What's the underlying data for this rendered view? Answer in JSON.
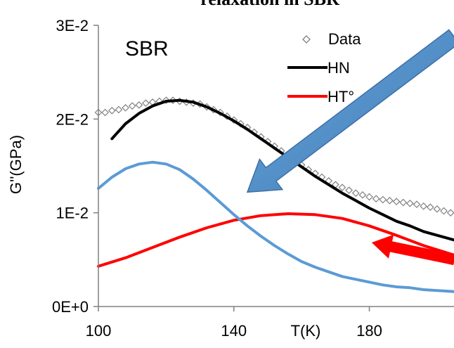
{
  "chart_data": {
    "type": "scatter",
    "title": "relaxation in SBR",
    "annotation": "SBR",
    "xlabel": "T(K)",
    "ylabel": "G''(GPa)",
    "xlim": [
      100,
      205
    ],
    "ylim": [
      0,
      0.03
    ],
    "x_ticks": [
      {
        "value": 100,
        "label": "100"
      },
      {
        "value": 140,
        "label": "140"
      },
      {
        "value": 180,
        "label": "180"
      }
    ],
    "y_ticks": [
      {
        "value": 0,
        "label": "0E+0"
      },
      {
        "value": 0.01,
        "label": "1E-2"
      },
      {
        "value": 0.02,
        "label": "2E-2"
      },
      {
        "value": 0.03,
        "label": "3E-2"
      }
    ],
    "grid": false,
    "legend_position": "top-right",
    "series": [
      {
        "name": "Data",
        "kind": "scatter",
        "marker": "diamond",
        "color": "#808080",
        "points": [
          [
            100,
            0.0207
          ],
          [
            102,
            0.0207
          ],
          [
            104,
            0.0209
          ],
          [
            106,
            0.021
          ],
          [
            108,
            0.0212
          ],
          [
            110,
            0.0214
          ],
          [
            112,
            0.0215
          ],
          [
            114,
            0.0217
          ],
          [
            116,
            0.0218
          ],
          [
            118,
            0.0219
          ],
          [
            120,
            0.022
          ],
          [
            122,
            0.022
          ],
          [
            124,
            0.0219
          ],
          [
            126,
            0.0218
          ],
          [
            128,
            0.0217
          ],
          [
            130,
            0.0216
          ],
          [
            132,
            0.0213
          ],
          [
            134,
            0.021
          ],
          [
            136,
            0.0207
          ],
          [
            138,
            0.0203
          ],
          [
            140,
            0.0199
          ],
          [
            142,
            0.0195
          ],
          [
            144,
            0.0191
          ],
          [
            146,
            0.0186
          ],
          [
            148,
            0.0181
          ],
          [
            150,
            0.0176
          ],
          [
            152,
            0.0171
          ],
          [
            154,
            0.0166
          ],
          [
            156,
            0.0161
          ],
          [
            158,
            0.0156
          ],
          [
            160,
            0.0151
          ],
          [
            162,
            0.0146
          ],
          [
            164,
            0.0142
          ],
          [
            166,
            0.0138
          ],
          [
            168,
            0.0134
          ],
          [
            170,
            0.013
          ],
          [
            172,
            0.0127
          ],
          [
            174,
            0.0124
          ],
          [
            176,
            0.0121
          ],
          [
            178,
            0.0119
          ],
          [
            180,
            0.0117
          ],
          [
            182,
            0.0115
          ],
          [
            184,
            0.0114
          ],
          [
            186,
            0.0113
          ],
          [
            188,
            0.0112
          ],
          [
            190,
            0.0111
          ],
          [
            192,
            0.011
          ],
          [
            194,
            0.0109
          ],
          [
            196,
            0.0107
          ],
          [
            198,
            0.0106
          ],
          [
            200,
            0.0104
          ],
          [
            202,
            0.0102
          ],
          [
            204,
            0.01
          ]
        ]
      },
      {
        "name": "HN",
        "kind": "line",
        "color": "#000000",
        "points": [
          [
            104,
            0.0179
          ],
          [
            108,
            0.0195
          ],
          [
            112,
            0.0206
          ],
          [
            116,
            0.0214
          ],
          [
            120,
            0.0219
          ],
          [
            124,
            0.022
          ],
          [
            128,
            0.0218
          ],
          [
            132,
            0.0213
          ],
          [
            136,
            0.0206
          ],
          [
            140,
            0.0198
          ],
          [
            144,
            0.0189
          ],
          [
            148,
            0.0179
          ],
          [
            152,
            0.0169
          ],
          [
            156,
            0.0159
          ],
          [
            160,
            0.0149
          ],
          [
            164,
            0.0139
          ],
          [
            168,
            0.013
          ],
          [
            172,
            0.0121
          ],
          [
            176,
            0.0113
          ],
          [
            180,
            0.0105
          ],
          [
            184,
            0.0098
          ],
          [
            188,
            0.0091
          ],
          [
            192,
            0.0086
          ],
          [
            196,
            0.008
          ],
          [
            200,
            0.0076
          ],
          [
            205,
            0.0071
          ]
        ]
      },
      {
        "name": "HT°",
        "kind": "line",
        "color": "#ff0000",
        "points": [
          [
            100,
            0.0043
          ],
          [
            108,
            0.0052
          ],
          [
            116,
            0.0063
          ],
          [
            124,
            0.0074
          ],
          [
            132,
            0.0084
          ],
          [
            140,
            0.0092
          ],
          [
            148,
            0.0097
          ],
          [
            156,
            0.0099
          ],
          [
            164,
            0.0098
          ],
          [
            172,
            0.0094
          ],
          [
            180,
            0.0086
          ],
          [
            188,
            0.0076
          ],
          [
            196,
            0.0065
          ],
          [
            205,
            0.0055
          ]
        ]
      },
      {
        "kind": "line",
        "color": "#5b9bd5",
        "points": [
          [
            100,
            0.0126
          ],
          [
            104,
            0.0138
          ],
          [
            108,
            0.0147
          ],
          [
            112,
            0.0152
          ],
          [
            116,
            0.0154
          ],
          [
            120,
            0.0152
          ],
          [
            124,
            0.0146
          ],
          [
            128,
            0.0136
          ],
          [
            132,
            0.0124
          ],
          [
            136,
            0.0111
          ],
          [
            140,
            0.0098
          ],
          [
            144,
            0.0086
          ],
          [
            148,
            0.0075
          ],
          [
            152,
            0.0065
          ],
          [
            156,
            0.0056
          ],
          [
            160,
            0.0048
          ],
          [
            164,
            0.0042
          ],
          [
            168,
            0.0037
          ],
          [
            172,
            0.0032
          ],
          [
            176,
            0.0029
          ],
          [
            180,
            0.0026
          ],
          [
            184,
            0.0023
          ],
          [
            188,
            0.0021
          ],
          [
            192,
            0.002
          ],
          [
            196,
            0.0018
          ],
          [
            200,
            0.0017
          ],
          [
            205,
            0.0016
          ]
        ]
      }
    ],
    "arrows": [
      {
        "color": "#5b9bd5",
        "from": [
          205,
          0.0288
        ],
        "to": [
          144,
          0.0122
        ]
      },
      {
        "color": "#ff0000",
        "from": [
          205,
          0.005
        ],
        "to": [
          181,
          0.0068
        ]
      }
    ]
  }
}
